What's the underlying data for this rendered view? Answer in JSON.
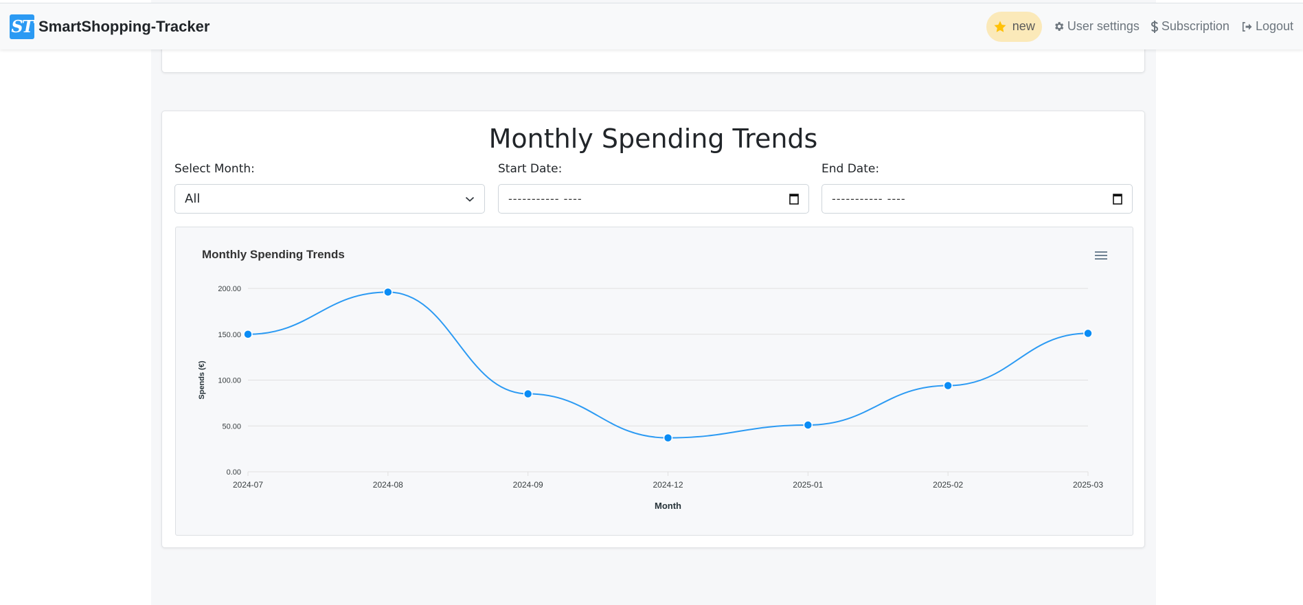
{
  "navbar": {
    "brand_logo": "ST",
    "brand_name": "SmartShopping-Tracker",
    "badge_icon": "star-icon",
    "badge_label": "new",
    "links": [
      {
        "icon": "gear-icon",
        "label": "User settings"
      },
      {
        "icon": "dollar-icon",
        "label": "Subscription"
      },
      {
        "icon": "logout-icon",
        "label": "Logout"
      }
    ]
  },
  "section": {
    "title": "Monthly Spending Trends",
    "select_month_label": "Select Month:",
    "select_month_value": "All",
    "start_date_label": "Start Date:",
    "start_date_placeholder": "----------- ----",
    "end_date_label": "End Date:",
    "end_date_placeholder": "----------- ----"
  },
  "colors": {
    "accent": "#2b9af3",
    "line": "#2b9af3",
    "marker": "#0a8cf5",
    "badge_bg": "#fbe9b9",
    "star": "#ffc107"
  },
  "chart_data": {
    "type": "line",
    "title": "Monthly Spending Trends",
    "xlabel": "Month",
    "ylabel": "Spends (€)",
    "categories": [
      "2024-07",
      "2024-08",
      "2024-09",
      "2024-12",
      "2025-01",
      "2025-02",
      "2025-03"
    ],
    "series": [
      {
        "name": "Spends",
        "values": [
          150,
          196,
          85,
          37,
          51,
          94,
          151
        ]
      }
    ],
    "yticks": [
      "0.00",
      "50.00",
      "100.00",
      "150.00",
      "200.00"
    ],
    "ylim": [
      0,
      200
    ],
    "grid": true,
    "smooth": true,
    "legend": "none"
  }
}
